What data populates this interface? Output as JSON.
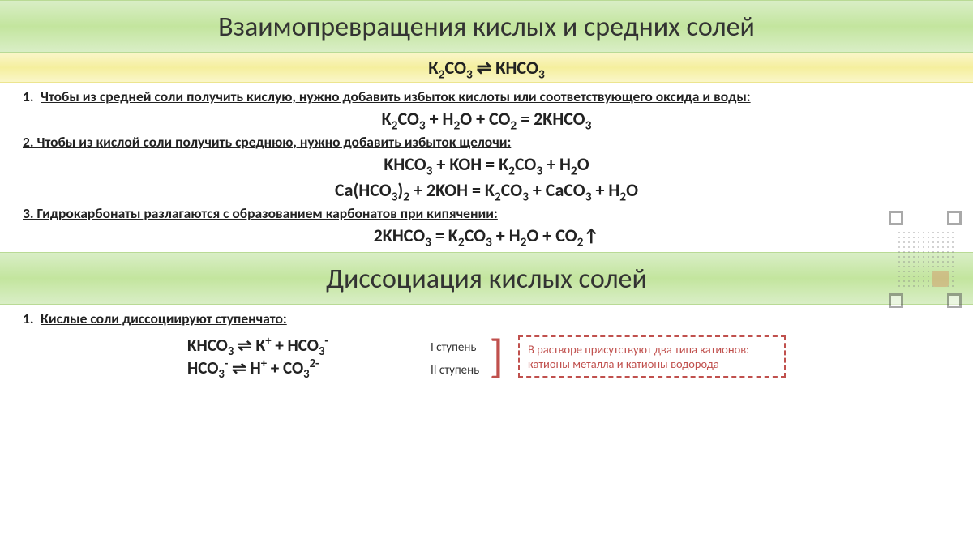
{
  "colors": {
    "green_grad_top": "#d9eec6",
    "green_grad_mid": "#c3e59e",
    "yellow_grad_top": "#faf6c8",
    "yellow_grad_mid": "#f5ef9e",
    "note_border": "#c0504d",
    "text": "#222222",
    "bg": "#ffffff"
  },
  "fonts": {
    "title_size_pt": 34,
    "subtitle_size_pt": 22,
    "body_size_pt": 18,
    "rule_size_pt": 17.5,
    "eq_size_pt": 22,
    "note_size_pt": 14.5
  },
  "title1": "Взаимопревращения кислых и средних солей",
  "subtitle_html": "К<sub>2</sub>СО<sub>3</sub> ⇌ КНСО<sub>3</sub>",
  "rule1": "Чтобы из средней соли получить кислую, нужно добавить избыток кислоты или соответствующего оксида и воды:",
  "rule1_num": "1.",
  "eq1_html": "K<sub>2</sub>CO<sub>3</sub> + H<sub>2</sub>O + CO<sub>2</sub> = 2KHCO<sub>3</sub>",
  "rule2": "2. Чтобы из кислой соли получить среднюю, нужно добавить избыток щелочи:",
  "eq2_html": "KHCO<sub>3</sub> + KOH = K<sub>2</sub>CO<sub>3</sub> + H<sub>2</sub>O",
  "eq3_html": "Ca(HCO<sub>3</sub>)<sub>2</sub> + 2KOH = K<sub>2</sub>CO<sub>3</sub> + CaCO<sub>3</sub> + H<sub>2</sub>O",
  "rule3": "3. Гидрокарбонаты разлагаются с образованием карбонатов при кипячении:",
  "eq4_html": "2KHCO<sub>3</sub> = K<sub>2</sub>CO<sub>3</sub> + H<sub>2</sub>O + CO<sub>2</sub>↑",
  "title2": "Диссоциация кислых солей",
  "rule4": "Кислые соли диссоциируют ступенчато:",
  "rule4_num": "1.",
  "diss1_html": "KHCO<sub>3</sub> ⇌ К<sup>+</sup> + HCO<sub>3</sub><sup>-</sup>",
  "diss1_step": "I ступень",
  "diss2_html": "HCO<sub>3</sub><sup>-</sup> ⇌ H<sup>+</sup> + CO<sub>3</sub><sup>2-</sup>",
  "diss2_step": "II ступень",
  "note": "В растворе присутствуют два типа катионов: катионы металла и катионы водорода"
}
